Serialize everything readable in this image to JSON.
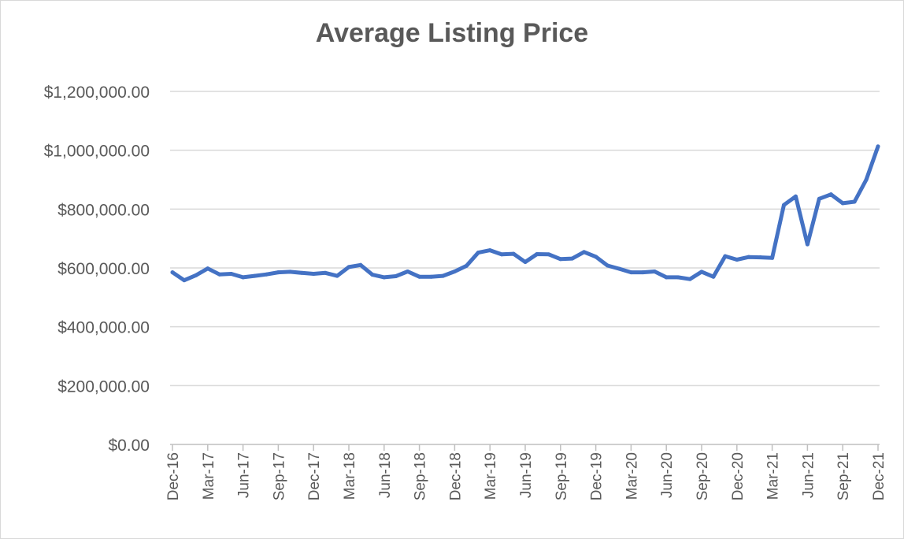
{
  "chart_data": {
    "type": "line",
    "title": "Average Listing Price",
    "xlabel": "",
    "ylabel": "",
    "ylim": [
      0,
      1200000
    ],
    "y_ticks": [
      0,
      200000,
      400000,
      600000,
      800000,
      1000000,
      1200000
    ],
    "y_tick_labels": [
      "$0.00",
      "$200,000.00",
      "$400,000.00",
      "$600,000.00",
      "$800,000.00",
      "$1,000,000.00",
      "$1,200,000.00"
    ],
    "x_tick_labels": [
      "Dec-16",
      "Mar-17",
      "Jun-17",
      "Sep-17",
      "Dec-17",
      "Mar-18",
      "Jun-18",
      "Sep-18",
      "Dec-18",
      "Mar-19",
      "Jun-19",
      "Sep-19",
      "Dec-19",
      "Mar-20",
      "Jun-20",
      "Sep-20",
      "Dec-20",
      "Mar-21",
      "Jun-21",
      "Sep-21",
      "Dec-21"
    ],
    "grid": true,
    "legend": "none",
    "line_color": "#4472C4",
    "x": [
      "Dec-16",
      "Jan-17",
      "Feb-17",
      "Mar-17",
      "Apr-17",
      "May-17",
      "Jun-17",
      "Jul-17",
      "Aug-17",
      "Sep-17",
      "Oct-17",
      "Nov-17",
      "Dec-17",
      "Jan-18",
      "Feb-18",
      "Mar-18",
      "Apr-18",
      "May-18",
      "Jun-18",
      "Jul-18",
      "Aug-18",
      "Sep-18",
      "Oct-18",
      "Nov-18",
      "Dec-18",
      "Jan-19",
      "Feb-19",
      "Mar-19",
      "Apr-19",
      "May-19",
      "Jun-19",
      "Jul-19",
      "Aug-19",
      "Sep-19",
      "Oct-19",
      "Nov-19",
      "Dec-19",
      "Jan-20",
      "Feb-20",
      "Mar-20",
      "Apr-20",
      "May-20",
      "Jun-20",
      "Jul-20",
      "Aug-20",
      "Sep-20",
      "Oct-20",
      "Nov-20",
      "Dec-20",
      "Jan-21",
      "Feb-21",
      "Mar-21",
      "Apr-21",
      "May-21",
      "Jun-21",
      "Jul-21",
      "Aug-21",
      "Sep-21",
      "Oct-21",
      "Nov-21",
      "Dec-21"
    ],
    "series": [
      {
        "values": [
          585000,
          558000,
          575000,
          598000,
          578000,
          580000,
          568000,
          573000,
          578000,
          585000,
          587000,
          583000,
          580000,
          583000,
          573000,
          603000,
          610000,
          577000,
          568000,
          572000,
          588000,
          570000,
          570000,
          573000,
          588000,
          607000,
          652000,
          660000,
          646000,
          648000,
          620000,
          647000,
          646000,
          630000,
          632000,
          654000,
          638000,
          608000,
          597000,
          585000,
          585000,
          588000,
          568000,
          568000,
          562000,
          587000,
          570000,
          640000,
          628000,
          637000,
          636000,
          634000,
          814000,
          843000,
          680000,
          835000,
          850000,
          820000,
          825000,
          900000,
          1013000
        ]
      }
    ]
  }
}
